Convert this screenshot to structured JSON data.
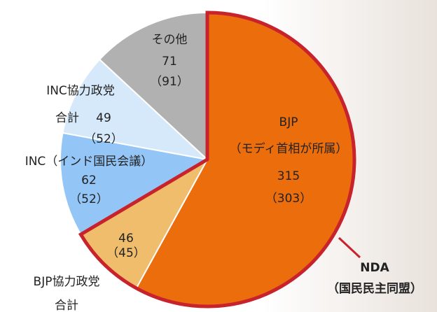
{
  "chart_data": {
    "type": "pie",
    "categories": [
      [
        "BJP",
        "（モディ首相が所属）"
      ],
      [
        "BJP協力政党",
        "合計"
      ],
      [
        "INC（インド国民会議）"
      ],
      [
        "INC協力政党",
        "合計"
      ],
      [
        "その他"
      ]
    ],
    "values": [
      315,
      46,
      62,
      49,
      71
    ],
    "previous_values": [
      {
        "value": 303,
        "label": "（303）"
      },
      {
        "value": 45,
        "label": "（45）"
      },
      {
        "value": 52,
        "label": "（52）"
      },
      {
        "value": 52,
        "label": "（52）"
      },
      {
        "value": 91,
        "label": "（91）"
      }
    ],
    "colors": [
      "#ec6d0c",
      "#f0bd6c",
      "#93c6f6",
      "#d6e9fb",
      "#b1b1b1"
    ],
    "annotation": {
      "text": [
        "NDA",
        "（国民民主同盟）"
      ],
      "color": "#c8232c"
    }
  }
}
